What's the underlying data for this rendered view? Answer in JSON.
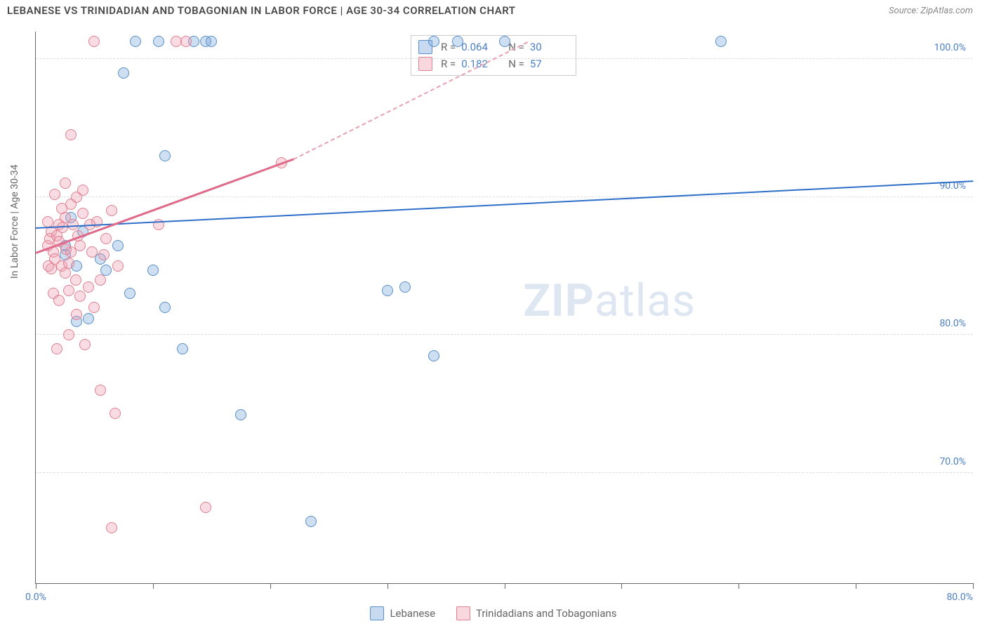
{
  "title": "LEBANESE VS TRINIDADIAN AND TOBAGONIAN IN LABOR FORCE | AGE 30-34 CORRELATION CHART",
  "source": "Source: ZipAtlas.com",
  "ylabel": "In Labor Force | Age 30-34",
  "watermark_a": "ZIP",
  "watermark_b": "atlas",
  "chart": {
    "type": "scatter",
    "xlim": [
      0,
      80
    ],
    "ylim": [
      62,
      102
    ],
    "yticks": [
      {
        "v": 70.0,
        "label": "70.0%"
      },
      {
        "v": 80.0,
        "label": "80.0%"
      },
      {
        "v": 90.0,
        "label": "90.0%"
      },
      {
        "v": 100.0,
        "label": "100.0%"
      }
    ],
    "xticks": [
      0,
      10,
      20,
      30,
      40,
      50,
      60,
      70,
      80
    ],
    "xtick_labels": {
      "first": "0.0%",
      "last": "80.0%"
    },
    "grid_color": "#dddddd",
    "background_color": "#ffffff",
    "series": [
      {
        "name": "Lebanese",
        "color_fill": "#74a2d6",
        "color_stroke": "#5a8fc9",
        "r": "0.064",
        "n": "30",
        "trend": {
          "x1": 0,
          "y1": 87.8,
          "x2": 80,
          "y2": 91.2,
          "color": "#2e6fc9"
        },
        "points": [
          [
            7.5,
            99.0
          ],
          [
            8.5,
            101.3
          ],
          [
            10.5,
            101.3
          ],
          [
            11.0,
            93.0
          ],
          [
            13.5,
            101.3
          ],
          [
            14.5,
            101.3
          ],
          [
            15.0,
            101.3
          ],
          [
            3.0,
            88.5
          ],
          [
            4.0,
            87.5
          ],
          [
            2.5,
            86.5
          ],
          [
            5.5,
            85.5
          ],
          [
            2.5,
            85.8
          ],
          [
            3.5,
            85.0
          ],
          [
            6.0,
            84.7
          ],
          [
            4.5,
            81.2
          ],
          [
            8.0,
            83.0
          ],
          [
            10.0,
            84.7
          ],
          [
            11.0,
            82.0
          ],
          [
            7.0,
            86.5
          ],
          [
            12.5,
            79.0
          ],
          [
            17.5,
            74.2
          ],
          [
            23.5,
            66.5
          ],
          [
            30.0,
            83.2
          ],
          [
            31.5,
            83.5
          ],
          [
            34.0,
            101.3
          ],
          [
            36.0,
            101.3
          ],
          [
            40.0,
            101.3
          ],
          [
            34.0,
            78.5
          ],
          [
            58.5,
            101.3
          ],
          [
            3.5,
            81.0
          ]
        ]
      },
      {
        "name": "Trinidadians and Tobagonians",
        "color_fill": "#ee9cb0",
        "color_stroke": "#e08090",
        "r": "0.182",
        "n": "57",
        "trend_solid": {
          "x1": 0,
          "y1": 86.0,
          "x2": 22,
          "y2": 92.8,
          "color": "#e06a8a"
        },
        "trend_dash": {
          "x1": 22,
          "y1": 92.8,
          "x2": 42,
          "y2": 101.3,
          "color": "#e8a0b0"
        },
        "points": [
          [
            1.0,
            86.5
          ],
          [
            1.2,
            87.0
          ],
          [
            1.3,
            87.5
          ],
          [
            1.5,
            86.0
          ],
          [
            1.6,
            85.5
          ],
          [
            1.8,
            87.2
          ],
          [
            2.0,
            88.0
          ],
          [
            2.0,
            86.8
          ],
          [
            2.2,
            85.0
          ],
          [
            2.3,
            87.8
          ],
          [
            2.5,
            88.5
          ],
          [
            2.5,
            84.5
          ],
          [
            2.8,
            85.2
          ],
          [
            3.0,
            86.0
          ],
          [
            3.0,
            89.5
          ],
          [
            3.2,
            88.0
          ],
          [
            3.4,
            84.0
          ],
          [
            3.5,
            90.0
          ],
          [
            3.8,
            86.5
          ],
          [
            4.0,
            88.8
          ],
          [
            1.5,
            83.0
          ],
          [
            2.0,
            82.5
          ],
          [
            2.8,
            80.0
          ],
          [
            3.5,
            81.5
          ],
          [
            4.2,
            79.3
          ],
          [
            5.0,
            82.0
          ],
          [
            1.8,
            79.0
          ],
          [
            4.5,
            83.5
          ],
          [
            5.5,
            84.0
          ],
          [
            6.0,
            87.0
          ],
          [
            6.5,
            89.0
          ],
          [
            3.0,
            94.5
          ],
          [
            5.0,
            101.3
          ],
          [
            12.0,
            101.3
          ],
          [
            12.8,
            101.3
          ],
          [
            5.5,
            76.0
          ],
          [
            6.8,
            74.3
          ],
          [
            6.5,
            66.0
          ],
          [
            14.5,
            67.5
          ],
          [
            10.5,
            88.0
          ],
          [
            21.0,
            92.5
          ],
          [
            2.5,
            91.0
          ],
          [
            4.0,
            90.5
          ],
          [
            1.0,
            88.2
          ],
          [
            1.3,
            84.8
          ],
          [
            2.2,
            89.2
          ],
          [
            3.6,
            87.2
          ],
          [
            4.8,
            86.0
          ],
          [
            5.2,
            88.2
          ],
          [
            7.0,
            85.0
          ],
          [
            1.6,
            90.2
          ],
          [
            2.8,
            83.2
          ],
          [
            3.8,
            82.8
          ],
          [
            4.6,
            88.0
          ],
          [
            5.8,
            85.8
          ],
          [
            1.1,
            85.0
          ],
          [
            2.6,
            86.2
          ]
        ]
      }
    ]
  },
  "legend": {
    "series1": "Lebanese",
    "series2": "Trinidadians and Tobagonians"
  },
  "statbox": {
    "r_label": "R =",
    "n_label": "N ="
  }
}
